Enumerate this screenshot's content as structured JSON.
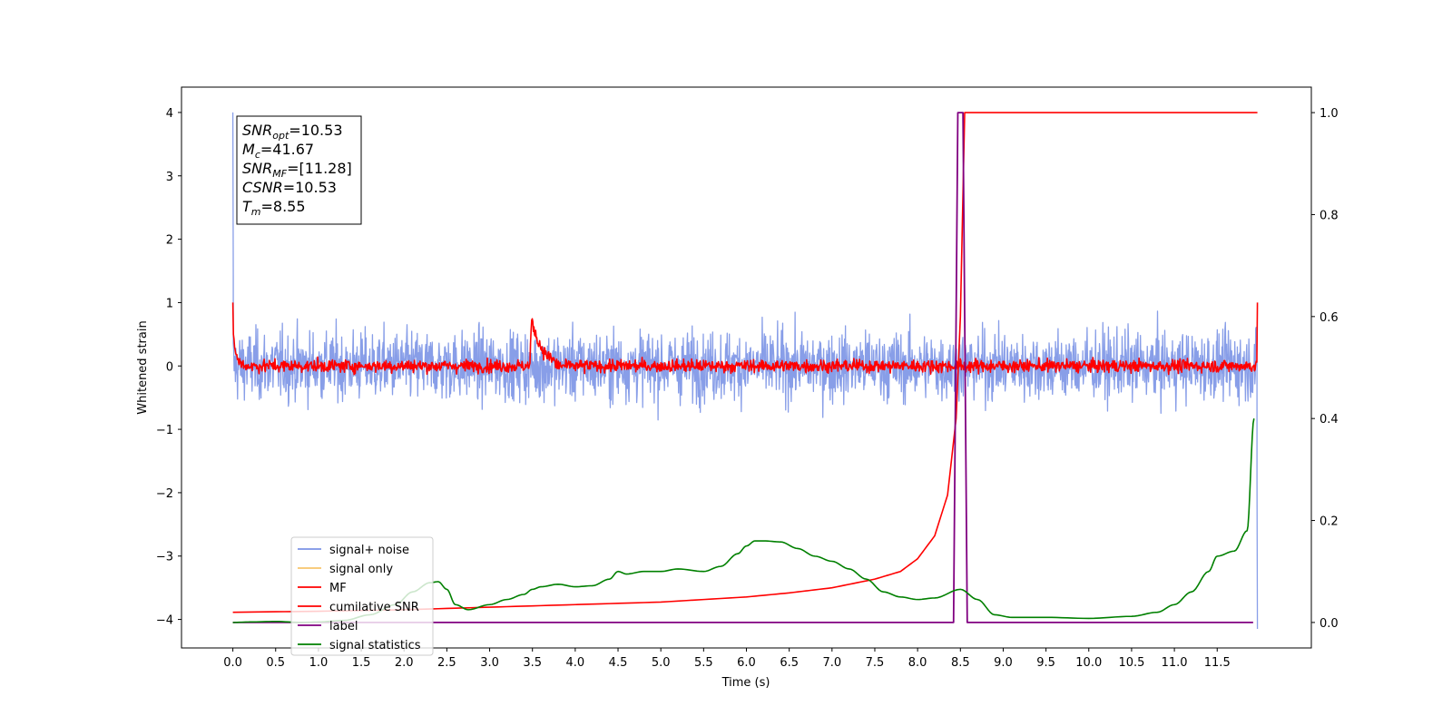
{
  "chart_data": {
    "type": "line",
    "xlabel": "Time (s)",
    "ylabel": "Whitened strain",
    "ylabel_right": "",
    "xlim": [
      -0.6,
      12.6
    ],
    "ylim": [
      -4.45,
      4.4
    ],
    "ylim_right": [
      -0.05,
      1.05
    ],
    "x_ticks": [
      "0.0",
      "0.5",
      "1.0",
      "1.5",
      "2.0",
      "2.5",
      "3.0",
      "3.5",
      "4.0",
      "4.5",
      "5.0",
      "5.5",
      "6.0",
      "6.5",
      "7.0",
      "7.5",
      "8.0",
      "8.5",
      "9.0",
      "9.5",
      "10.0",
      "10.5",
      "11.0",
      "11.5"
    ],
    "y_ticks_left": [
      "4",
      "3",
      "2",
      "1",
      "0",
      "−1",
      "−2",
      "−3",
      "−4"
    ],
    "y_ticks_right": [
      "1.0",
      "0.8",
      "0.6",
      "0.4",
      "0.2",
      "0.0"
    ],
    "annotation": [
      {
        "var": "SNR",
        "sub": "opt",
        "value": "=10.53"
      },
      {
        "var": "M",
        "sub": "c",
        "value": "=41.67"
      },
      {
        "var": "SNR",
        "sub": "MF",
        "value": "=[11.28]"
      },
      {
        "var": "CSNR",
        "sub": "",
        "value": "=10.53"
      },
      {
        "var": "T",
        "sub": "m",
        "value": "=8.55"
      }
    ],
    "legend": {
      "placement": "lower-left",
      "entries": [
        {
          "label": "signal+ noise",
          "color": "#7b93e6"
        },
        {
          "label": "signal only",
          "color": "#f7c56b"
        },
        {
          "label": "MF",
          "color": "#ff0000"
        },
        {
          "label": "cumilative SNR",
          "color": "#ff0000"
        },
        {
          "label": "label",
          "color": "#800080"
        },
        {
          "label": "signal statistics",
          "color": "#008000"
        }
      ]
    },
    "series": [
      {
        "name": "signal+ noise",
        "axis": "left",
        "color": "#7b93e6",
        "description_values": {
          "x_range": [
            0,
            11.97
          ],
          "mean": 0.0,
          "amplitude": 0.38,
          "spike_start": 4.0,
          "spike_end": -4.15
        }
      },
      {
        "name": "MF",
        "axis": "left",
        "color": "#ff0000",
        "description_values": {
          "x_range": [
            0,
            11.97
          ],
          "mean": 0.0,
          "amplitude": 0.07,
          "start_value": 1.0,
          "end_value": 1.0,
          "bump_x": 3.47,
          "bump_value": 0.85
        }
      },
      {
        "name": "cumilative SNR",
        "axis": "right",
        "color": "#ff0000",
        "x": [
          0.0,
          1.0,
          2.0,
          3.0,
          4.0,
          5.0,
          6.0,
          6.5,
          7.0,
          7.5,
          7.8,
          8.0,
          8.2,
          8.35,
          8.45,
          8.5,
          8.55,
          11.97
        ],
        "y": [
          0.02,
          0.022,
          0.025,
          0.03,
          0.035,
          0.04,
          0.05,
          0.058,
          0.068,
          0.085,
          0.1,
          0.125,
          0.17,
          0.25,
          0.4,
          0.6,
          1.0,
          1.0
        ]
      },
      {
        "name": "label",
        "axis": "right",
        "color": "#800080",
        "x": [
          0.0,
          8.42,
          8.47,
          8.53,
          8.58,
          11.92
        ],
        "y": [
          0.0,
          0.0,
          1.0,
          1.0,
          0.0,
          0.0
        ]
      },
      {
        "name": "signal statistics",
        "axis": "right",
        "color": "#008000",
        "x": [
          0.0,
          0.2,
          0.5,
          0.8,
          1.0,
          1.3,
          1.6,
          1.9,
          2.1,
          2.3,
          2.4,
          2.5,
          2.6,
          2.75,
          3.0,
          3.2,
          3.4,
          3.5,
          3.6,
          3.8,
          4.0,
          4.2,
          4.4,
          4.5,
          4.6,
          4.8,
          5.0,
          5.2,
          5.5,
          5.7,
          5.9,
          6.0,
          6.1,
          6.2,
          6.4,
          6.6,
          6.8,
          7.0,
          7.2,
          7.4,
          7.6,
          7.8,
          8.0,
          8.2,
          8.5,
          8.7,
          8.9,
          9.1,
          9.5,
          10.0,
          10.5,
          10.8,
          11.0,
          11.2,
          11.4,
          11.5,
          11.7,
          11.85,
          11.93
        ],
        "y": [
          0.0,
          0.001,
          0.002,
          0.0,
          0.001,
          0.004,
          0.015,
          0.035,
          0.06,
          0.078,
          0.08,
          0.065,
          0.035,
          0.025,
          0.035,
          0.045,
          0.055,
          0.065,
          0.07,
          0.075,
          0.07,
          0.072,
          0.085,
          0.1,
          0.095,
          0.1,
          0.1,
          0.105,
          0.1,
          0.11,
          0.135,
          0.15,
          0.16,
          0.16,
          0.158,
          0.145,
          0.13,
          0.12,
          0.105,
          0.085,
          0.06,
          0.05,
          0.045,
          0.048,
          0.065,
          0.045,
          0.015,
          0.01,
          0.01,
          0.008,
          0.012,
          0.02,
          0.035,
          0.06,
          0.1,
          0.13,
          0.14,
          0.18,
          0.4
        ]
      }
    ],
    "grid": false
  }
}
